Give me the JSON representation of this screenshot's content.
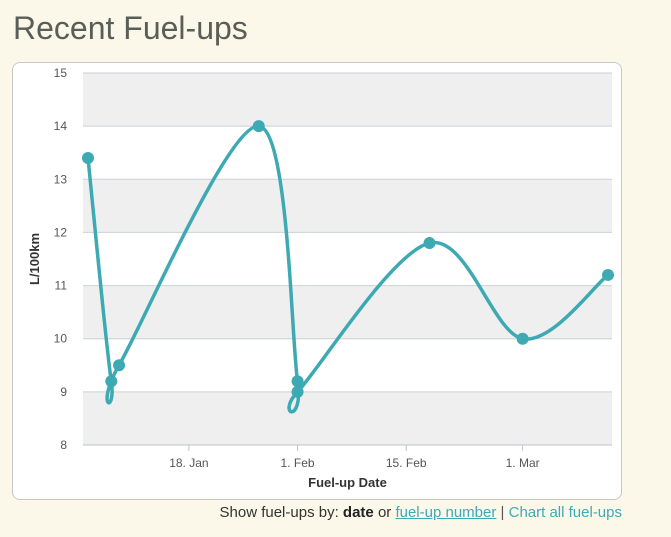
{
  "page": {
    "title": "Recent Fuel-ups"
  },
  "footer": {
    "prefix": "Show fuel-ups by:",
    "date_label": "date",
    "or_text": "or",
    "number_link": "fuel-up number",
    "separator": "|",
    "chart_all_link": "Chart all fuel-ups"
  },
  "colors": {
    "line": "#3daab3",
    "band": "#efefef",
    "grid": "#c9d2d6"
  },
  "chart_data": {
    "type": "line",
    "xlabel": "Fuel-up Date",
    "ylabel": "L/100km",
    "ylim": [
      8,
      15
    ],
    "yticks": [
      8,
      9,
      10,
      11,
      12,
      13,
      14,
      15
    ],
    "xlim": [
      "2024-01-05",
      "2024-03-12"
    ],
    "xticks": [
      {
        "date": "2024-01-18",
        "label": "18. Jan"
      },
      {
        "date": "2024-02-01",
        "label": "1. Feb"
      },
      {
        "date": "2024-02-15",
        "label": "15. Feb"
      },
      {
        "date": "2024-03-01",
        "label": "1. Mar"
      }
    ],
    "smooth": true,
    "grid": true,
    "series": [
      {
        "points": [
          {
            "x": "2024-01-05",
            "y": 13.4
          },
          {
            "x": "2024-01-08",
            "y": 9.2
          },
          {
            "x": "2024-01-09",
            "y": 9.5
          },
          {
            "x": "2024-01-27",
            "y": 14.0
          },
          {
            "x": "2024-02-01",
            "y": 9.2
          },
          {
            "x": "2024-02-01",
            "y": 9.0
          },
          {
            "x": "2024-02-18",
            "y": 11.8
          },
          {
            "x": "2024-03-01",
            "y": 10.0
          },
          {
            "x": "2024-03-12",
            "y": 11.2
          }
        ]
      }
    ]
  }
}
